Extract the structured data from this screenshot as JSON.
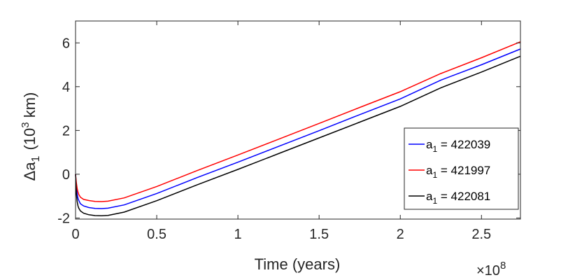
{
  "chart_data": {
    "type": "line",
    "xlabel": "Time (years)",
    "ylabel_main": "Δa",
    "ylabel_sub": "1",
    "ylabel_unit_open": "(10",
    "ylabel_unit_sup": "3",
    "ylabel_unit_close": " km)",
    "x_exponent_prefix": "×10",
    "x_exponent": "8",
    "xlim": [
      0,
      2.74
    ],
    "ylim": [
      -2.05,
      7.0
    ],
    "x_ticks": [
      0,
      0.5,
      1,
      1.5,
      2,
      2.5
    ],
    "x_tick_labels": [
      "0",
      "0.5",
      "1",
      "1.5",
      "2",
      "2.5"
    ],
    "y_ticks": [
      -2,
      0,
      2,
      4,
      6
    ],
    "y_tick_labels": [
      "-2",
      "0",
      "2",
      "4",
      "6"
    ],
    "grid": false,
    "legend_position": "bottom-right",
    "series": [
      {
        "label_main": "a",
        "label_sub": "1",
        "label_rest": " = 422039",
        "color": "#0000ff",
        "x": [
          0,
          0.005,
          0.01,
          0.015,
          0.02,
          0.03,
          0.05,
          0.08,
          0.12,
          0.16,
          0.2,
          0.3,
          0.5,
          0.75,
          1.0,
          1.25,
          1.5,
          1.75,
          2.0,
          2.25,
          2.5,
          2.74
        ],
        "y": [
          0.0,
          -0.6,
          -0.9,
          -1.1,
          -1.2,
          -1.35,
          -1.45,
          -1.52,
          -1.56,
          -1.57,
          -1.55,
          -1.4,
          -0.88,
          -0.15,
          0.55,
          1.27,
          1.99,
          2.72,
          3.44,
          4.3,
          5.0,
          5.72
        ]
      },
      {
        "label_main": "a",
        "label_sub": "1",
        "label_rest": " = 421997",
        "color": "#ff0000",
        "x": [
          0,
          0.005,
          0.01,
          0.015,
          0.02,
          0.03,
          0.05,
          0.08,
          0.12,
          0.16,
          0.2,
          0.3,
          0.5,
          0.75,
          1.0,
          1.25,
          1.5,
          1.75,
          2.0,
          2.25,
          2.5,
          2.74
        ],
        "y": [
          0.0,
          -0.4,
          -0.65,
          -0.82,
          -0.92,
          -1.05,
          -1.15,
          -1.2,
          -1.24,
          -1.25,
          -1.23,
          -1.08,
          -0.56,
          0.17,
          0.88,
          1.6,
          2.32,
          3.05,
          3.77,
          4.6,
          5.32,
          6.05
        ]
      },
      {
        "label_main": "a",
        "label_sub": "1",
        "label_rest": " = 422081",
        "color": "#000000",
        "x": [
          0,
          0.005,
          0.01,
          0.015,
          0.02,
          0.03,
          0.05,
          0.08,
          0.12,
          0.16,
          0.2,
          0.3,
          0.5,
          0.75,
          1.0,
          1.25,
          1.5,
          1.75,
          2.0,
          2.25,
          2.5,
          2.74
        ],
        "y": [
          0.0,
          -0.9,
          -1.25,
          -1.45,
          -1.55,
          -1.68,
          -1.78,
          -1.85,
          -1.89,
          -1.9,
          -1.88,
          -1.73,
          -1.21,
          -0.48,
          0.22,
          0.94,
          1.66,
          2.38,
          3.1,
          3.95,
          4.67,
          5.39
        ]
      }
    ]
  }
}
